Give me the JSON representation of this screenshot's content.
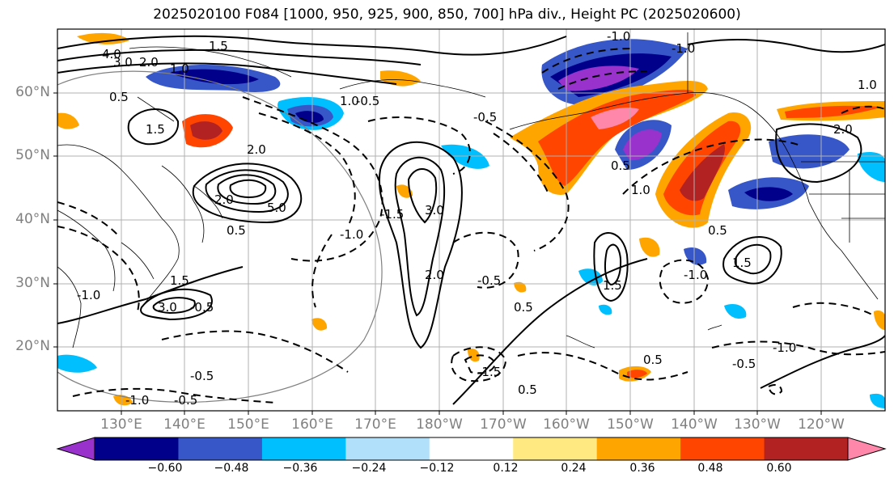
{
  "title": "2025020100 F084 [1000, 950, 925, 900, 850, 700] hPa div., Height PC (2025020600)",
  "lat_labels": [
    "60°N",
    "50°N",
    "40°N",
    "30°N",
    "20°N"
  ],
  "lon_labels": [
    "130°E",
    "140°E",
    "150°E",
    "160°E",
    "170°E",
    "180°W",
    "170°W",
    "160°W",
    "150°W",
    "140°W",
    "130°W",
    "120°W"
  ],
  "colorbar": {
    "ticks": [
      "−0.60",
      "−0.48",
      "−0.36",
      "−0.24",
      "−0.12",
      "0.12",
      "0.24",
      "0.36",
      "0.48",
      "0.60"
    ],
    "colors": [
      "#9932cc",
      "#00008b",
      "#3757c8",
      "#00bfff",
      "#b0e0fa",
      "#ffffff",
      "#ffe980",
      "#ffa500",
      "#ff4500",
      "#b22222",
      "#ff88aa"
    ]
  },
  "contour_labels": [
    "4.0",
    "3.0",
    "2.0",
    "1.5",
    "1.0",
    "0.5",
    "-0.5",
    "-1.0",
    "-1.5",
    "2.0",
    "3.0",
    "5.0",
    "2.0",
    "1.5",
    "0.5",
    "-0.5",
    "1.0",
    "1.5",
    "-1.0",
    "-0.5",
    "0.5",
    "1.5",
    "2.0",
    "3.0",
    "-0.5",
    "-1.5",
    "0.5",
    "-0.5",
    "-1.0",
    "1.0",
    "-0.5",
    "-1.0",
    "1.5",
    "-0.5",
    "2.0",
    "-1.0",
    "-1.0",
    "0.5",
    "0.5",
    "1.0",
    "0.5",
    "-1.0"
  ]
}
